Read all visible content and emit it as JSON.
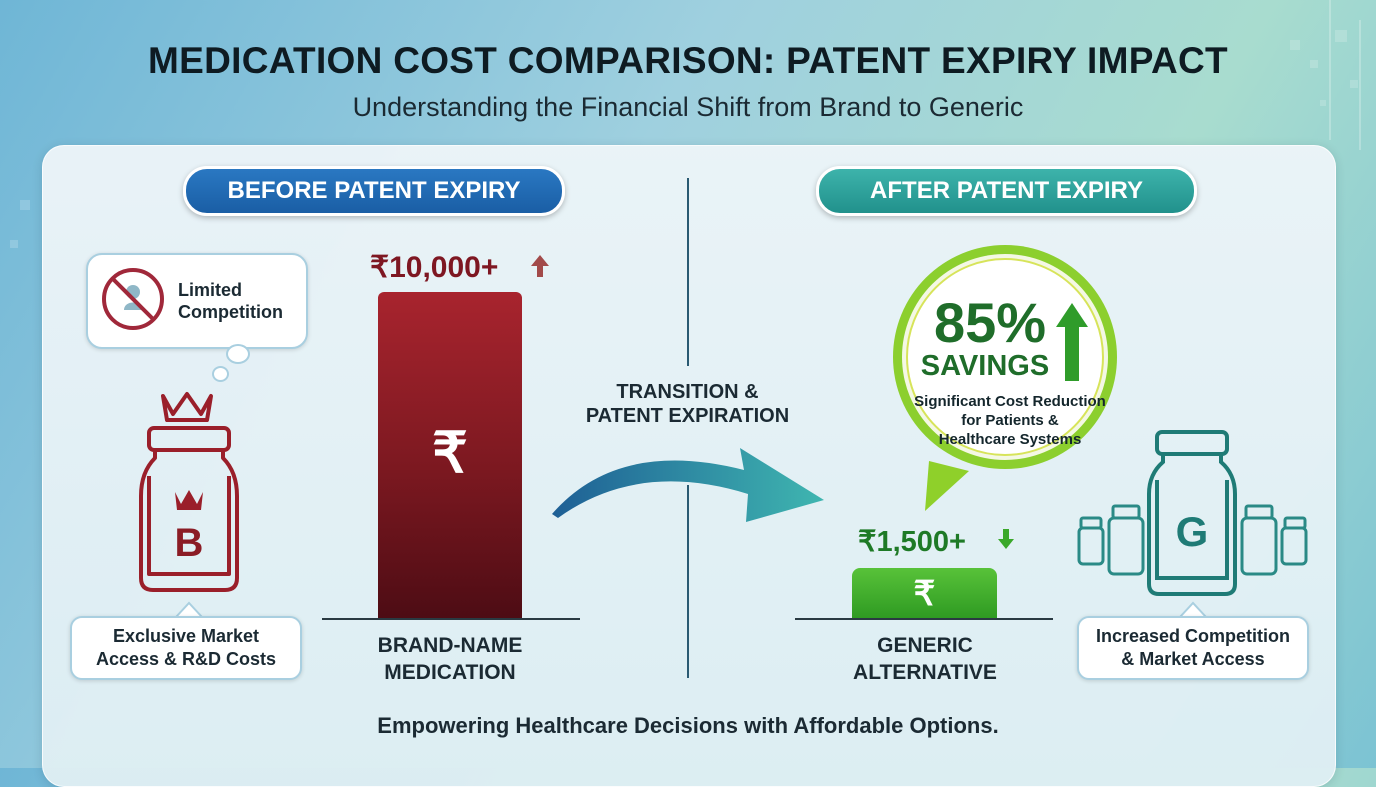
{
  "header": {
    "title": "MEDICATION COST COMPARISON: PATENT EXPIRY IMPACT",
    "subtitle": "Understanding the Financial Shift from Brand to Generic"
  },
  "before": {
    "heading": "BEFORE PATENT EXPIRY",
    "bubble_text": "Limited Competition",
    "bottle_letter": "B",
    "info": "Exclusive Market\nAccess & R&D Costs",
    "price": "₹10,000+",
    "bar_symbol": "₹",
    "caption": "BRAND-NAME\nMEDICATION"
  },
  "transition": {
    "label": "TRANSITION &\nPATENT EXPIRATION"
  },
  "after": {
    "heading": "AFTER PATENT EXPIRY",
    "savings_percent": "85%",
    "savings_label": "SAVINGS",
    "savings_desc": "Significant Cost Reduction\nfor Patients &\nHealthcare Systems",
    "price": "₹1,500+",
    "bar_symbol": "₹",
    "caption": "GENERIC\nALTERNATIVE",
    "bottle_letter": "G",
    "info": "Increased Competition\n& Market Access"
  },
  "footer": "Empowering Healthcare Decisions with Affordable Options.",
  "colors": {
    "brand_red": "#8b1c25",
    "generic_green": "#3aa82a",
    "before_blue": "#1f66ad",
    "after_teal": "#2aa39c",
    "savings_dark_green": "#1f6d2a"
  },
  "icons": [
    "no-competition-icon",
    "crown-icon",
    "brand-bottle-icon",
    "up-arrow-icon",
    "down-arrow-icon",
    "transition-arrow-icon",
    "generic-bottle-icon",
    "small-vial-icon"
  ]
}
